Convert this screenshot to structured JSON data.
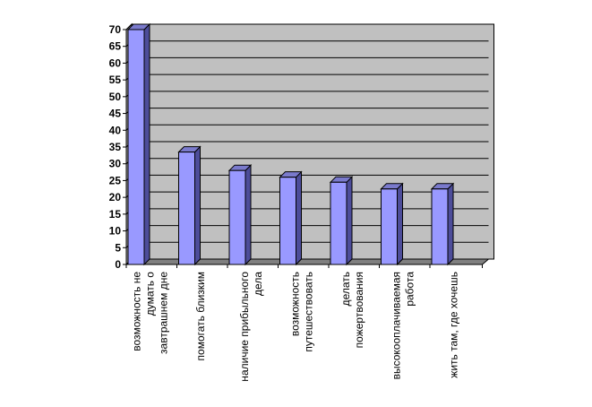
{
  "chart_data": {
    "type": "bar",
    "style": "3d-column",
    "categories": [
      [
        "возможность не",
        "думать о",
        "завтрашнем дне"
      ],
      [
        "помогать близким"
      ],
      [
        "наличие прибыльного",
        "дела"
      ],
      [
        "возможность",
        "путешествовать"
      ],
      [
        "делать",
        "пожертвования"
      ],
      [
        "высокооплачиваемая",
        "работа"
      ],
      [
        "жить там, где хочешь"
      ]
    ],
    "values": [
      70,
      33.5,
      28,
      26,
      24.5,
      22.5,
      22.5
    ],
    "ylim": [
      0,
      70
    ],
    "yticks": [
      "0",
      "5",
      "10",
      "15",
      "20",
      "25",
      "30",
      "35",
      "40",
      "45",
      "50",
      "55",
      "60",
      "65",
      "70"
    ],
    "grid": true,
    "legend": "none",
    "colors": {
      "bar_front": "#9999ff",
      "bar_side": "#4d4d9a",
      "bar_top": "#7a7acc",
      "wall": "#c0c0c0",
      "floor": "#808080",
      "gridline": "#000000"
    }
  }
}
